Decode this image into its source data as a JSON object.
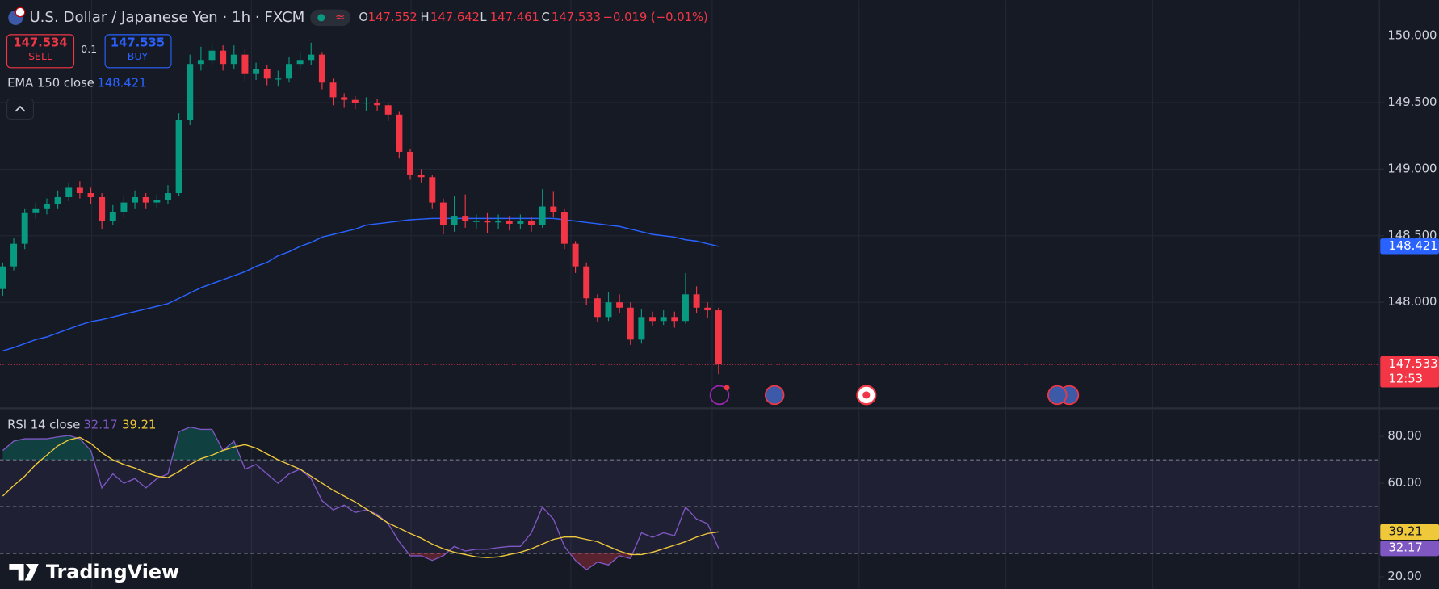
{
  "header": {
    "symbol": "U.S. Dollar / Japanese Yen · 1h · FXCM",
    "ohlc": [
      {
        "label": "O",
        "value": "147.552"
      },
      {
        "label": "H",
        "value": "147.642"
      },
      {
        "label": "L",
        "value": "147.461"
      },
      {
        "label": "C",
        "value": "147.533"
      }
    ],
    "change": "−0.019 (−0.01%)"
  },
  "trade_panel": {
    "sell_price": "147.534",
    "sell_label": "SELL",
    "spread": "0.1",
    "buy_price": "147.535",
    "buy_label": "BUY"
  },
  "brand": "TradingView",
  "chart_data": [
    {
      "type": "candlestick",
      "ylim": [
        147.207,
        150.269
      ],
      "yticks": [
        {
          "value": 150,
          "label": "150.000"
        },
        {
          "value": 149.5,
          "label": "149.500"
        },
        {
          "value": 149,
          "label": "149.000"
        },
        {
          "value": 148.5,
          "label": "148.500"
        },
        {
          "value": 148,
          "label": "148.000"
        }
      ],
      "grid": true,
      "candles": {
        "up_color": "#089981",
        "down_color": "#f23645",
        "open": [
          148.1,
          148.27,
          148.44,
          148.67,
          148.7,
          148.74,
          148.79,
          148.86,
          148.82,
          148.79,
          148.61,
          148.68,
          148.75,
          148.79,
          148.75,
          148.77,
          148.82,
          149.37,
          149.79,
          149.82,
          149.89,
          149.79,
          149.86,
          149.72,
          149.75,
          149.68,
          149.68,
          149.79,
          149.82,
          149.86,
          149.65,
          149.54,
          149.52,
          149.5,
          149.5,
          149.48,
          149.41,
          149.13,
          148.96,
          148.94,
          148.75,
          148.58,
          148.65,
          148.61,
          148.61,
          148.6,
          148.61,
          148.59,
          148.61,
          148.58,
          148.72,
          148.68,
          148.44,
          148.27,
          148.03,
          147.89,
          148.0,
          147.96,
          147.72,
          147.89,
          147.86,
          147.89,
          147.86,
          148.06,
          147.96,
          147.94
        ],
        "high": [
          148.3,
          148.48,
          148.7,
          148.75,
          148.78,
          148.84,
          148.9,
          148.91,
          148.86,
          148.82,
          148.73,
          148.8,
          148.84,
          148.82,
          148.81,
          148.88,
          149.42,
          149.86,
          149.92,
          149.95,
          149.93,
          149.93,
          149.9,
          149.8,
          149.78,
          149.74,
          149.84,
          149.88,
          149.95,
          149.88,
          149.68,
          149.57,
          149.55,
          149.54,
          149.53,
          149.5,
          149.43,
          149.15,
          149.0,
          148.96,
          148.78,
          148.8,
          148.81,
          148.66,
          148.67,
          148.66,
          148.65,
          148.66,
          148.64,
          148.85,
          148.83,
          148.7,
          148.46,
          148.3,
          148.06,
          148.08,
          148.06,
          148.0,
          147.95,
          147.93,
          147.94,
          147.93,
          148.22,
          148.12,
          148.0,
          147.96
        ],
        "low": [
          148.05,
          148.24,
          148.4,
          148.63,
          148.66,
          148.7,
          148.76,
          148.78,
          148.74,
          148.55,
          148.58,
          148.64,
          148.7,
          148.7,
          148.71,
          148.74,
          148.8,
          149.33,
          149.74,
          149.78,
          149.74,
          149.75,
          149.66,
          149.67,
          149.63,
          149.62,
          149.65,
          149.75,
          149.78,
          149.6,
          149.48,
          149.46,
          149.45,
          149.44,
          149.44,
          149.36,
          149.08,
          148.92,
          148.9,
          148.7,
          148.51,
          148.53,
          148.56,
          148.55,
          148.52,
          148.55,
          148.54,
          148.55,
          148.53,
          148.56,
          148.64,
          148.4,
          148.22,
          147.98,
          147.85,
          147.86,
          147.92,
          147.68,
          147.69,
          147.82,
          147.83,
          147.81,
          147.84,
          147.92,
          147.88,
          147.46
        ],
        "close": [
          148.27,
          148.44,
          148.67,
          148.7,
          148.74,
          148.79,
          148.86,
          148.82,
          148.79,
          148.61,
          148.68,
          148.75,
          148.79,
          148.75,
          148.77,
          148.82,
          149.37,
          149.79,
          149.82,
          149.89,
          149.79,
          149.86,
          149.72,
          149.75,
          149.68,
          149.68,
          149.79,
          149.82,
          149.86,
          149.65,
          149.54,
          149.52,
          149.5,
          149.5,
          149.48,
          149.41,
          149.13,
          148.96,
          148.94,
          148.75,
          148.58,
          148.65,
          148.61,
          148.61,
          148.6,
          148.61,
          148.59,
          148.61,
          148.58,
          148.72,
          148.68,
          148.44,
          148.27,
          148.03,
          147.89,
          148.0,
          147.96,
          147.72,
          147.89,
          147.86,
          147.89,
          147.86,
          148.06,
          147.96,
          147.94,
          147.533
        ]
      },
      "last_price_label": "147.533",
      "countdown": "12:53",
      "series": [
        {
          "name": "EMA 150 close",
          "color": "#2962ff",
          "last_label": "148.421",
          "values": [
            147.635,
            147.66,
            147.69,
            147.72,
            147.74,
            147.77,
            147.8,
            147.83,
            147.855,
            147.87,
            147.89,
            147.91,
            147.93,
            147.95,
            147.97,
            147.99,
            148.03,
            148.07,
            148.11,
            148.14,
            148.17,
            148.2,
            148.23,
            148.27,
            148.3,
            148.35,
            148.38,
            148.42,
            148.45,
            148.49,
            148.51,
            148.53,
            148.55,
            148.58,
            148.59,
            148.6,
            148.61,
            148.62,
            148.625,
            148.63,
            148.63,
            148.63,
            148.63,
            148.63,
            148.63,
            148.63,
            148.63,
            148.63,
            148.63,
            148.63,
            148.63,
            148.62,
            148.61,
            148.6,
            148.59,
            148.58,
            148.57,
            148.55,
            148.53,
            148.51,
            148.5,
            148.49,
            148.47,
            148.46,
            148.44,
            148.421
          ]
        }
      ]
    },
    {
      "type": "line",
      "title": "RSI 14 close",
      "ylim": [
        14.9,
        91.8
      ],
      "yticks": [
        {
          "value": 80,
          "label": "80.00"
        },
        {
          "value": 60,
          "label": "60.00"
        },
        {
          "value": 20,
          "label": "20.00"
        }
      ],
      "levels": [
        70,
        50,
        30
      ],
      "band": [
        30,
        70
      ],
      "band_color": "#7e57c2",
      "series": [
        {
          "color": "#7e57c2",
          "last_label": "32.17",
          "values": [
            74,
            78,
            79,
            79,
            79,
            79.8,
            80.4,
            79,
            74,
            58,
            64,
            60,
            62,
            58,
            62,
            64,
            82,
            84,
            83,
            83,
            74,
            78,
            66,
            68,
            64,
            60,
            64,
            66,
            62,
            52.5,
            48.6,
            50.6,
            47.5,
            48.6,
            46.7,
            42.7,
            35,
            29,
            29,
            27,
            29,
            33,
            31,
            31.8,
            31.8,
            32.5,
            33,
            33,
            38.8,
            49.8,
            44.7,
            33,
            27,
            23,
            26.3,
            25.1,
            29,
            27.8,
            38.8,
            36.9,
            38.8,
            37.6,
            49.8,
            44.7,
            42.7,
            32.17
          ]
        },
        {
          "color": "#f0c93a",
          "last_label": "39.21",
          "values": [
            54.5,
            59,
            63,
            68,
            72,
            76,
            78.5,
            79.6,
            77,
            73,
            70,
            68,
            66.5,
            64.5,
            63,
            62.4,
            65,
            68,
            70.5,
            72,
            74,
            75.5,
            76.5,
            75,
            72.5,
            70,
            68,
            66,
            63,
            60,
            57,
            54.5,
            52,
            49,
            46,
            43,
            40.8,
            38.5,
            36.5,
            34,
            32,
            30.5,
            29.5,
            28.5,
            28.2,
            28.5,
            29.5,
            30.5,
            32,
            34,
            36,
            37,
            37,
            36,
            35,
            33,
            31,
            29.5,
            29.5,
            30.5,
            32,
            33.5,
            35,
            37,
            38.5,
            39.21
          ]
        }
      ]
    }
  ]
}
